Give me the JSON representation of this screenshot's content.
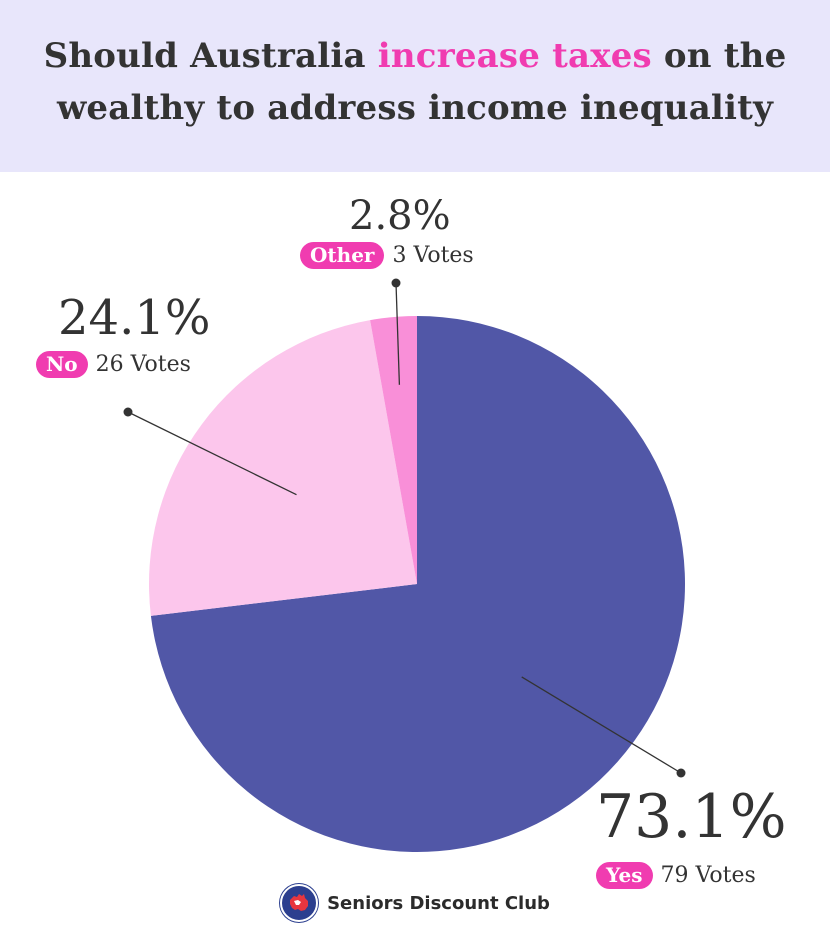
{
  "title": {
    "before": "Should Australia ",
    "highlight": "increase taxes",
    "after": " on the wealthy to address income inequality"
  },
  "colors": {
    "header_bg": "#e8e6fb",
    "highlight": "#f03cb0",
    "badge": "#f03cb0",
    "text": "#333333"
  },
  "chart_data": {
    "type": "pie",
    "title": "Should Australia increase taxes on the wealthy to address income inequality",
    "slices": [
      {
        "label": "Yes",
        "value": 73.1,
        "percent_label": "73.1%",
        "votes_label": "79 Votes",
        "color": "#5157a7"
      },
      {
        "label": "No",
        "value": 24.1,
        "percent_label": "24.1%",
        "votes_label": "26 Votes",
        "color": "#fcc6ec"
      },
      {
        "label": "Other",
        "value": 2.8,
        "percent_label": "2.8%",
        "votes_label": "3 Votes",
        "color": "#f98fd8"
      }
    ]
  },
  "footer": {
    "brand": "Seniors Discount Club",
    "logo_icon": "australia-map-icon"
  }
}
